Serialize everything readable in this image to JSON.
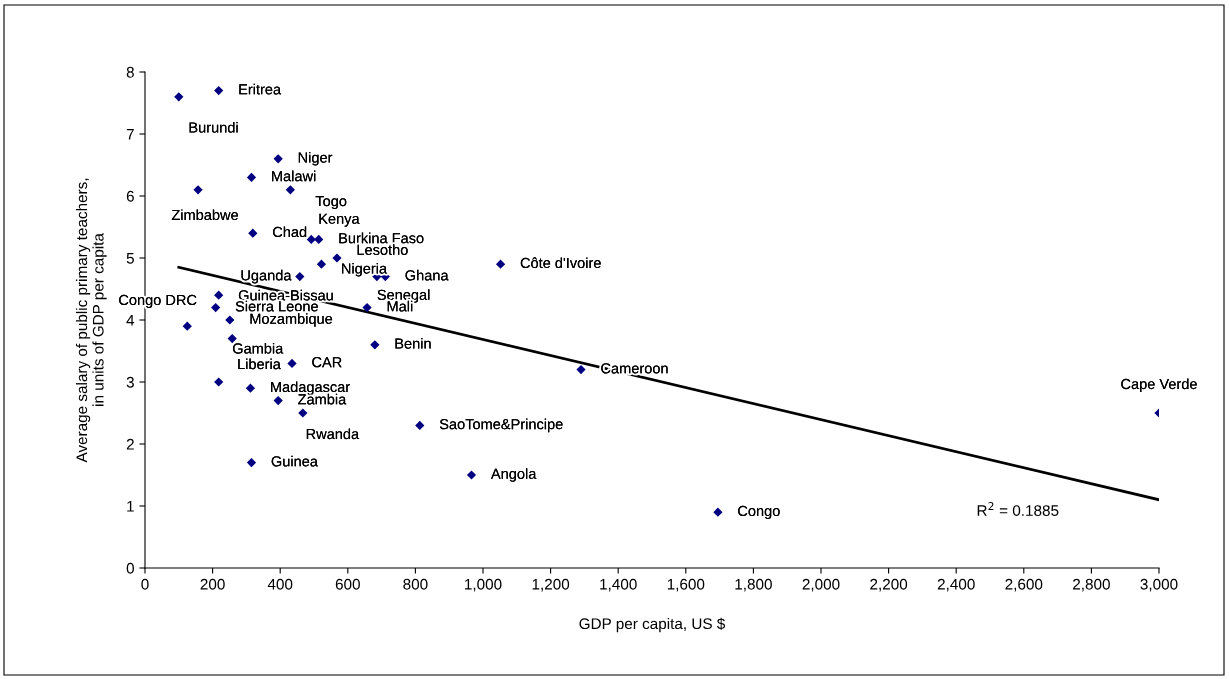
{
  "chart_data": {
    "type": "scatter",
    "xlabel": "GDP per capita, US $",
    "ylabel": "Average salary of public primary teachers,\nin units of GDP per capita",
    "xlim": [
      0,
      3000
    ],
    "xticks": [
      0,
      200,
      400,
      600,
      800,
      {
        "value": 1000,
        "label": "1,000"
      },
      {
        "value": 1200,
        "label": "1,200"
      },
      {
        "value": 1400,
        "label": "1,400"
      },
      {
        "value": 1600,
        "label": "1,600"
      },
      {
        "value": 1800,
        "label": "1,800"
      },
      {
        "value": 2000,
        "label": "2,000"
      },
      {
        "value": 2200,
        "label": "2,200"
      },
      {
        "value": 2400,
        "label": "2,400"
      },
      {
        "value": 2600,
        "label": "2,600"
      },
      {
        "value": 2800,
        "label": "2,800"
      },
      {
        "value": 3000,
        "label": "3,000"
      }
    ],
    "ylim": [
      0,
      8
    ],
    "yticks": [
      0,
      1,
      2,
      3,
      4,
      5,
      6,
      7,
      8
    ],
    "grid": false,
    "legend": false,
    "marker": "diamond",
    "series": [
      {
        "color": "#000080",
        "x": [
          100,
          218,
          394,
          315,
          157,
          430,
          319,
          492,
          514,
          568,
          522,
          458,
          686,
          711,
          1052,
          218,
          209,
          657,
          125,
          251,
          258,
          680,
          435,
          218,
          312,
          394,
          467,
          813,
          315,
          966,
          1290,
          1695,
          3000
        ],
        "values": [
          7.6,
          7.7,
          6.6,
          6.3,
          6.1,
          6.1,
          5.4,
          5.3,
          5.3,
          5.0,
          4.9,
          4.7,
          4.7,
          4.7,
          4.9,
          4.4,
          4.2,
          4.2,
          3.9,
          4.0,
          3.7,
          3.6,
          3.3,
          3.0,
          2.9,
          2.7,
          2.5,
          2.3,
          1.7,
          1.5,
          3.2,
          0.9,
          2.5
        ],
        "value_labels": [
          "Burundi",
          "Eritrea",
          "Niger",
          "Malawi",
          "Zimbabwe",
          "Togo",
          "Chad",
          "Kenya",
          "Burkina Faso",
          "Lesotho",
          "Nigeria",
          "Uganda",
          "Senegal",
          "Ghana",
          "Côte d'Ivoire",
          "Guinea-Bissau",
          "Sierra Leone",
          "Mali",
          "Congo DRC",
          "Mozambique",
          "Gambia",
          "Benin",
          "CAR",
          "Liberia",
          "Madagascar",
          "Zambia",
          "Rwanda",
          "SaoTome&Principe",
          "Guinea",
          "Angola",
          "Cameroon",
          "Congo",
          "Cape Verde"
        ]
      },
      {
        "type": "line",
        "color": "#000000",
        "x": [
          100,
          3000
        ],
        "values": [
          4.85,
          1.1
        ],
        "marker": "none",
        "line_style": "solid"
      }
    ],
    "annotations": [
      "R$^{2}$ = 0.1885"
    ]
  }
}
